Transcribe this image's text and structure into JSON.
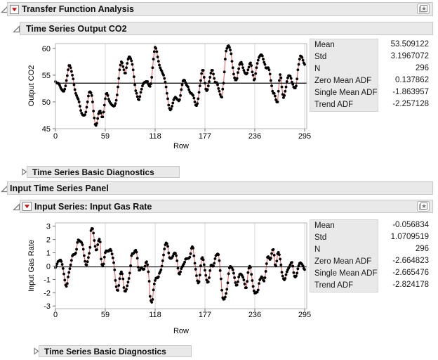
{
  "window_title": "Transfer Function Analysis",
  "colors": {
    "header_bg": "#e9e9e9",
    "header_border": "#c8c8c8",
    "accent_red": "#cc1111",
    "series_line": "#e05858",
    "point": "#000000",
    "gridline": "#d9d9d9",
    "plot_border": "#b5b5b5",
    "tick": "#707070",
    "stats_label_bg": "#e9e9e9"
  },
  "icons": {
    "root_disclosure": "disclosure-open-icon",
    "red_triangle": "red-triangle-menu-icon",
    "journal_star": "star-page-icon",
    "collapsed": "disclosure-closed-icon"
  },
  "headers": {
    "transfer_function": "Transfer Function Analysis",
    "output_series": "Time Series Output CO2",
    "diagnostics_top": "Time Series Basic Diagnostics",
    "input_panel": "Input Time Series Panel",
    "input_series": "Input Series: Input Gas Rate",
    "diagnostics_bottom": "Time Series Basic Diagnostics"
  },
  "stats_panels": [
    {
      "rows": [
        {
          "label": "Mean",
          "value": "53.509122"
        },
        {
          "label": "Std",
          "value": "3.1967072"
        },
        {
          "label": "N",
          "value": "296"
        },
        {
          "label": "Zero Mean ADF",
          "value": "0.137862"
        },
        {
          "label": "Single Mean ADF",
          "value": "-1.863957"
        },
        {
          "label": "Trend ADF",
          "value": "-2.257128"
        }
      ]
    },
    {
      "rows": [
        {
          "label": "Mean",
          "value": "-0.056834"
        },
        {
          "label": "Std",
          "value": "1.0709519"
        },
        {
          "label": "N",
          "value": "296"
        },
        {
          "label": "Zero Mean ADF",
          "value": "-2.664823"
        },
        {
          "label": "Single Mean ADF",
          "value": "-2.665476"
        },
        {
          "label": "Trend ADF",
          "value": "-2.824178"
        }
      ]
    }
  ],
  "chart_data": [
    {
      "type": "line",
      "title": "Time Series Output CO2",
      "xlabel": "Row",
      "ylabel": "Output CO2",
      "x_ticks": [
        0,
        59,
        118,
        177,
        236,
        295
      ],
      "y_ticks": [
        60,
        55,
        50,
        45
      ],
      "xlim": [
        0,
        295
      ],
      "ylim": [
        45,
        60.9
      ],
      "grid": "vertical",
      "mean_line": 53.509122,
      "marker": "filled-circle",
      "values": [
        53.8,
        53.6,
        53.5,
        53.5,
        53.4,
        53.1,
        52.7,
        52.4,
        52.2,
        52.0,
        52.0,
        52.4,
        53.0,
        54.0,
        54.9,
        56.0,
        56.8,
        56.8,
        56.4,
        55.7,
        55.0,
        54.3,
        53.2,
        52.3,
        51.6,
        51.2,
        50.8,
        50.5,
        50.0,
        49.2,
        48.4,
        47.9,
        47.6,
        47.5,
        47.5,
        47.6,
        48.1,
        49.0,
        50.0,
        51.1,
        51.8,
        51.9,
        51.7,
        51.2,
        50.0,
        48.3,
        47.0,
        45.8,
        45.6,
        46.0,
        46.9,
        47.8,
        48.2,
        48.3,
        47.9,
        47.2,
        47.2,
        48.1,
        49.4,
        50.6,
        51.5,
        51.6,
        51.2,
        50.5,
        50.1,
        49.8,
        49.6,
        49.4,
        49.3,
        49.2,
        49.3,
        49.7,
        50.3,
        51.3,
        52.8,
        54.4,
        56.0,
        56.9,
        57.5,
        57.3,
        56.6,
        56.0,
        55.4,
        55.4,
        56.4,
        57.2,
        58.0,
        58.4,
        58.4,
        58.1,
        57.7,
        57.0,
        56.0,
        54.7,
        53.2,
        52.1,
        51.6,
        51.0,
        50.5,
        50.4,
        51.0,
        51.8,
        52.4,
        53.0,
        53.4,
        53.6,
        53.7,
        53.8,
        53.8,
        53.8,
        53.3,
        53.0,
        52.9,
        53.4,
        54.6,
        56.4,
        58.0,
        59.4,
        60.2,
        60.0,
        59.4,
        58.4,
        57.6,
        56.9,
        56.4,
        56.0,
        55.7,
        55.3,
        55.0,
        54.4,
        53.7,
        52.8,
        51.6,
        50.6,
        49.4,
        48.8,
        48.5,
        48.7,
        49.2,
        49.8,
        50.4,
        50.7,
        50.9,
        50.7,
        50.5,
        50.4,
        50.2,
        50.4,
        51.2,
        52.3,
        53.2,
        53.9,
        54.1,
        54.0,
        53.6,
        53.2,
        53.0,
        52.8,
        52.3,
        51.9,
        51.6,
        51.6,
        51.4,
        51.2,
        50.7,
        50.0,
        49.4,
        49.3,
        49.7,
        50.6,
        51.8,
        53.0,
        54.0,
        55.3,
        55.9,
        55.9,
        54.6,
        53.5,
        52.4,
        52.1,
        52.3,
        53.0,
        53.8,
        54.6,
        55.4,
        55.9,
        55.9,
        55.2,
        54.4,
        53.7,
        53.6,
        53.6,
        53.2,
        52.5,
        52.0,
        51.4,
        51.0,
        50.9,
        52.4,
        53.5,
        55.6,
        58.0,
        59.5,
        60.0,
        60.4,
        60.5,
        60.2,
        59.7,
        59.0,
        57.6,
        56.4,
        55.2,
        54.5,
        54.1,
        54.1,
        54.4,
        55.5,
        56.2,
        57.0,
        57.3,
        57.4,
        57.0,
        56.4,
        55.9,
        55.5,
        55.3,
        55.2,
        55.4,
        56.0,
        56.5,
        57.1,
        57.3,
        56.8,
        55.6,
        55.0,
        54.1,
        54.3,
        55.3,
        56.4,
        57.2,
        57.8,
        58.3,
        58.6,
        58.8,
        58.8,
        58.6,
        58.0,
        57.4,
        57.0,
        56.4,
        56.3,
        56.4,
        56.4,
        56.0,
        55.2,
        54.0,
        53.0,
        52.0,
        51.6,
        51.6,
        51.1,
        50.4,
        50.0,
        50.0,
        52.0,
        54.0,
        55.1,
        54.5,
        52.8,
        51.4,
        50.8,
        51.2,
        52.0,
        52.8,
        53.8,
        54.5,
        54.9,
        54.9,
        54.8,
        54.4,
        53.7,
        53.3,
        52.8,
        52.6,
        52.6,
        53.0,
        54.3,
        56.0,
        57.0,
        58.0,
        58.6,
        58.5,
        58.3,
        57.8,
        57.3,
        57.0
      ]
    },
    {
      "type": "line",
      "title": "Input Series: Input Gas Rate",
      "xlabel": "Row",
      "ylabel": "Input Gas Rate",
      "x_ticks": [
        0,
        59,
        118,
        177,
        236,
        295
      ],
      "y_ticks": [
        3,
        2,
        1,
        0,
        -1,
        -2,
        -3
      ],
      "xlim": [
        0,
        295
      ],
      "ylim": [
        -3.2,
        3.25
      ],
      "grid": "vertical",
      "mean_line": -0.056834,
      "marker": "filled-circle",
      "values": [
        -0.109,
        0.0,
        0.178,
        0.339,
        0.373,
        0.441,
        0.461,
        0.348,
        0.127,
        -0.18,
        -0.588,
        -1.055,
        -1.421,
        -1.52,
        -1.302,
        -0.814,
        -0.475,
        -0.193,
        0.088,
        0.435,
        0.771,
        0.866,
        0.875,
        0.891,
        0.987,
        1.263,
        1.775,
        1.976,
        1.934,
        1.866,
        1.832,
        1.767,
        1.608,
        1.265,
        0.79,
        0.36,
        0.115,
        0.088,
        0.331,
        0.645,
        0.96,
        1.409,
        2.67,
        2.834,
        2.812,
        2.483,
        1.929,
        1.485,
        1.214,
        1.239,
        1.608,
        1.905,
        2.023,
        1.815,
        0.535,
        0.122,
        0.009,
        0.164,
        0.671,
        1.019,
        1.146,
        1.155,
        1.112,
        1.121,
        1.223,
        1.257,
        1.157,
        0.913,
        0.62,
        0.255,
        -0.28,
        -1.08,
        -1.551,
        -1.799,
        -1.825,
        -1.456,
        -0.944,
        -0.57,
        -0.431,
        -0.577,
        -0.96,
        -1.616,
        -1.875,
        -1.891,
        -1.746,
        -1.474,
        -1.201,
        -0.927,
        -0.524,
        0.04,
        0.788,
        0.943,
        0.93,
        1.006,
        1.137,
        1.198,
        1.054,
        0.595,
        -0.08,
        -0.314,
        -0.288,
        -0.153,
        -0.109,
        -0.187,
        -0.255,
        -0.229,
        -0.007,
        0.254,
        0.33,
        0.102,
        -0.423,
        -1.139,
        -2.275,
        -2.594,
        -2.716,
        -2.51,
        -1.79,
        -1.346,
        -1.081,
        -0.91,
        -0.876,
        -0.885,
        -0.8,
        -0.544,
        -0.416,
        -0.271,
        0.0,
        0.403,
        0.841,
        1.285,
        1.607,
        1.746,
        1.683,
        1.485,
        0.993,
        0.648,
        0.577,
        0.577,
        0.632,
        0.747,
        0.9,
        0.993,
        0.968,
        0.79,
        0.399,
        -0.161,
        -0.553,
        -0.603,
        -0.424,
        -0.194,
        -0.049,
        0.06,
        0.161,
        0.301,
        0.517,
        0.566,
        0.56,
        0.573,
        0.592,
        0.671,
        0.933,
        1.337,
        1.46,
        1.353,
        0.772,
        0.218,
        -0.237,
        -0.714,
        -1.099,
        -1.269,
        -1.175,
        -0.676,
        0.033,
        0.556,
        0.643,
        0.484,
        0.109,
        -0.31,
        -0.697,
        -1.047,
        -1.218,
        -1.183,
        -0.873,
        -0.336,
        0.063,
        0.084,
        0.0,
        0.001,
        0.209,
        0.556,
        0.782,
        0.858,
        0.918,
        0.862,
        0.416,
        -0.336,
        -0.959,
        -1.813,
        -2.378,
        -2.499,
        -2.473,
        -2.33,
        -2.053,
        -1.739,
        -1.261,
        -0.569,
        -0.137,
        -0.024,
        -0.05,
        -0.135,
        -0.276,
        -0.534,
        -0.871,
        -1.243,
        -1.439,
        -1.422,
        -1.175,
        -0.813,
        -0.634,
        -0.582,
        -0.625,
        -0.713,
        -0.848,
        -1.039,
        -1.346,
        -1.628,
        -1.619,
        -1.149,
        -0.488,
        -0.16,
        -0.007,
        -0.092,
        -0.62,
        -1.086,
        -1.525,
        -1.858,
        -2.029,
        -2.024,
        -1.961,
        -1.952,
        -1.794,
        -1.302,
        -1.03,
        -0.918,
        -0.798,
        -0.867,
        -1.047,
        -1.123,
        -0.876,
        -0.395,
        0.185,
        0.662,
        0.709,
        0.605,
        0.501,
        0.603,
        0.943,
        1.223,
        1.249,
        0.824,
        0.102,
        0.025,
        0.382,
        0.922,
        1.032,
        0.866,
        0.527,
        0.093,
        -0.458,
        -0.748,
        -0.947,
        -1.029,
        -0.928,
        -0.645,
        -0.424,
        -0.276,
        -0.158,
        -0.033,
        0.102,
        0.251,
        0.28,
        0.0,
        -0.493,
        -0.759,
        -0.824,
        -0.74,
        -0.528,
        -0.204,
        0.034,
        0.204,
        0.253,
        0.195,
        0.131,
        0.017,
        -0.182,
        -0.262
      ]
    }
  ]
}
